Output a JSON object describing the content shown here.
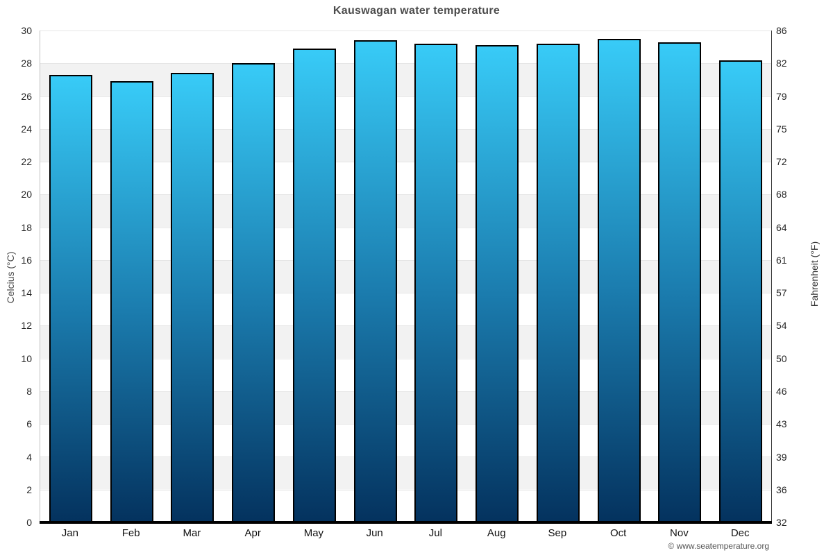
{
  "title": "Kauswagan water temperature",
  "attribution": "© www.seatemperature.org",
  "colors": {
    "bar_gradient_top": "#38cbf7",
    "bar_gradient_mid": "#1b7cae",
    "bar_gradient_bottom": "#04325e",
    "bar_border": "#000000",
    "band_gray": "#f2f2f2",
    "gridline": "#e6e6e6",
    "axis_bottom": "#000000",
    "title_text": "#4c4c4c"
  },
  "chart_data": {
    "type": "bar",
    "title": "Kauswagan water temperature",
    "categories": [
      "Jan",
      "Feb",
      "Mar",
      "Apr",
      "May",
      "Jun",
      "Jul",
      "Aug",
      "Sep",
      "Oct",
      "Nov",
      "Dec"
    ],
    "values": [
      27.3,
      26.9,
      27.4,
      28.0,
      28.9,
      29.4,
      29.2,
      29.1,
      29.2,
      29.5,
      29.3,
      28.2
    ],
    "ylabel_left": "Celcius (°C)",
    "ylabel_right": "Fahrenheit (°F)",
    "ylim": [
      0,
      30
    ],
    "yticks_celsius": [
      30,
      28,
      26,
      24,
      22,
      20,
      18,
      16,
      14,
      12,
      10,
      8,
      6,
      4,
      2,
      0
    ],
    "yticks_fahrenheit": [
      86,
      82,
      79,
      75,
      72,
      68,
      64,
      61,
      57,
      54,
      50,
      46,
      43,
      39,
      36,
      32
    ],
    "xlabel": "",
    "grid": "horizontal alternating bands, gridline every 2°C",
    "legend": "none"
  }
}
